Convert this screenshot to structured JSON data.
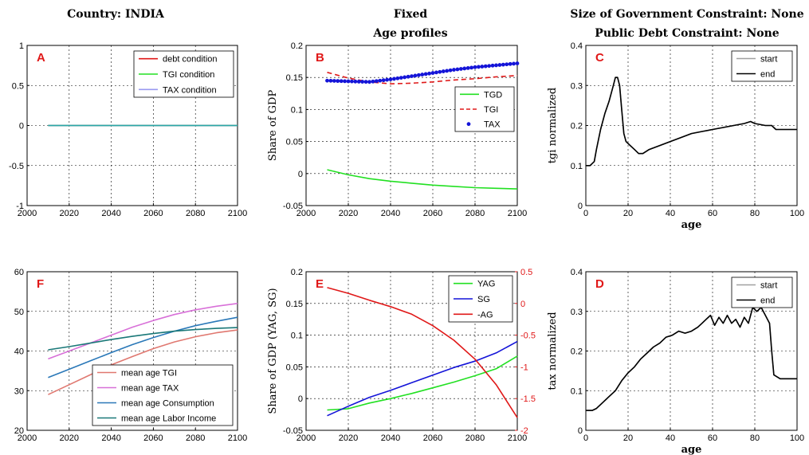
{
  "headers": {
    "country": "Country: INDIA",
    "mode": "Fixed",
    "sub": "Age profiles",
    "constraint1": "Size of Government Constraint: None",
    "constraint2": "Public Debt Constraint: None"
  },
  "colors": {
    "red": "#e01818",
    "green": "#22e022",
    "lavender": "#9a9af0",
    "teal": "#2aa8a8",
    "blue": "#1414d8",
    "steelblue": "#2a78b8",
    "salmon": "#e07870",
    "magenta": "#d870d8",
    "darkteal": "#1a7878",
    "gray": "#a0a0a0",
    "black": "#000000"
  },
  "chart_data": [
    {
      "panel": "A",
      "type": "line",
      "xlabel": "",
      "ylabel": "",
      "xlim": [
        2000,
        2100
      ],
      "ylim": [
        -1,
        1
      ],
      "xticks": [
        2000,
        2020,
        2040,
        2060,
        2080,
        2100
      ],
      "yticks": [
        -1,
        -0.5,
        0,
        0.5,
        1
      ],
      "grid": true,
      "legend_position": "top-right",
      "series": [
        {
          "name": "debt condition",
          "color": "red",
          "style": "solid",
          "x": [
            2010,
            2100
          ],
          "y": [
            0,
            0
          ]
        },
        {
          "name": "TGI condition",
          "color": "green",
          "style": "solid",
          "x": [
            2010,
            2100
          ],
          "y": [
            0,
            0
          ]
        },
        {
          "name": "TAX condition",
          "color": "lavender",
          "style": "solid",
          "x": [
            2010,
            2100
          ],
          "y": [
            0,
            0
          ]
        },
        {
          "color": "teal",
          "style": "solid",
          "x": [
            2010,
            2100
          ],
          "y": [
            0,
            0
          ]
        }
      ]
    },
    {
      "panel": "B",
      "type": "line",
      "xlabel": "",
      "ylabel": "Share of GDP",
      "xlim": [
        2000,
        2100
      ],
      "ylim": [
        -0.05,
        0.2
      ],
      "xticks": [
        2000,
        2020,
        2040,
        2060,
        2080,
        2100
      ],
      "yticks": [
        -0.05,
        0,
        0.05,
        0.1,
        0.15,
        0.2
      ],
      "grid": true,
      "legend_position": "right-middle",
      "series": [
        {
          "name": "TGD",
          "color": "green",
          "style": "solid",
          "x": [
            2010,
            2020,
            2030,
            2040,
            2050,
            2060,
            2070,
            2080,
            2090,
            2100
          ],
          "y": [
            0.006,
            -0.002,
            -0.008,
            -0.012,
            -0.015,
            -0.018,
            -0.02,
            -0.022,
            -0.023,
            -0.024
          ]
        },
        {
          "name": "TGI",
          "color": "red",
          "style": "dashed",
          "x": [
            2010,
            2020,
            2030,
            2040,
            2050,
            2060,
            2070,
            2080,
            2090,
            2100
          ],
          "y": [
            0.158,
            0.149,
            0.143,
            0.14,
            0.141,
            0.143,
            0.146,
            0.148,
            0.151,
            0.153
          ]
        },
        {
          "name": "TAX",
          "color": "blue",
          "style": "markers",
          "x": [
            2010,
            2020,
            2030,
            2040,
            2050,
            2060,
            2070,
            2080,
            2090,
            2100
          ],
          "y": [
            0.145,
            0.144,
            0.143,
            0.147,
            0.152,
            0.157,
            0.162,
            0.166,
            0.169,
            0.172
          ]
        }
      ]
    },
    {
      "panel": "C",
      "type": "line",
      "xlabel": "age",
      "ylabel": "tgi normalized",
      "xlim": [
        0,
        100
      ],
      "ylim": [
        0,
        0.4
      ],
      "xticks": [
        0,
        20,
        40,
        60,
        80,
        100
      ],
      "yticks": [
        0,
        0.1,
        0.2,
        0.3,
        0.4
      ],
      "grid": true,
      "legend_position": "top-right",
      "series": [
        {
          "name": "start",
          "color": "gray",
          "style": "solid",
          "x": [
            0,
            2,
            4,
            5,
            7,
            9,
            11,
            13,
            14,
            15,
            16,
            17,
            18,
            19,
            21,
            23,
            25,
            27,
            30,
            35,
            40,
            45,
            50,
            55,
            60,
            65,
            70,
            75,
            78,
            80,
            85,
            88,
            90,
            100
          ],
          "y": [
            0.1,
            0.1,
            0.11,
            0.14,
            0.19,
            0.23,
            0.26,
            0.3,
            0.32,
            0.32,
            0.3,
            0.24,
            0.18,
            0.16,
            0.15,
            0.14,
            0.13,
            0.13,
            0.14,
            0.15,
            0.16,
            0.17,
            0.18,
            0.185,
            0.19,
            0.195,
            0.2,
            0.205,
            0.21,
            0.205,
            0.2,
            0.2,
            0.19,
            0.19
          ]
        },
        {
          "name": "end",
          "color": "black",
          "style": "solid",
          "x": [
            0,
            2,
            4,
            5,
            7,
            9,
            11,
            13,
            14,
            15,
            16,
            17,
            18,
            19,
            21,
            23,
            25,
            27,
            30,
            35,
            40,
            45,
            50,
            55,
            60,
            65,
            70,
            75,
            78,
            80,
            85,
            88,
            90,
            100
          ],
          "y": [
            0.1,
            0.1,
            0.11,
            0.14,
            0.19,
            0.23,
            0.26,
            0.3,
            0.32,
            0.32,
            0.3,
            0.24,
            0.18,
            0.16,
            0.15,
            0.14,
            0.13,
            0.13,
            0.14,
            0.15,
            0.16,
            0.17,
            0.18,
            0.185,
            0.19,
            0.195,
            0.2,
            0.205,
            0.21,
            0.205,
            0.2,
            0.2,
            0.19,
            0.19
          ]
        }
      ]
    },
    {
      "panel": "F",
      "type": "line",
      "xlabel": "",
      "ylabel": "",
      "xlim": [
        2000,
        2100
      ],
      "ylim": [
        20,
        60
      ],
      "xticks": [
        2000,
        2020,
        2040,
        2060,
        2080,
        2100
      ],
      "yticks": [
        20,
        30,
        40,
        50,
        60
      ],
      "grid": true,
      "legend_position": "bottom-right",
      "series": [
        {
          "name": "mean age TGI",
          "color": "salmon",
          "style": "solid",
          "x": [
            2010,
            2020,
            2030,
            2040,
            2050,
            2060,
            2070,
            2080,
            2090,
            2100
          ],
          "y": [
            29.0,
            31.5,
            34.0,
            36.5,
            38.6,
            40.6,
            42.3,
            43.6,
            44.6,
            45.3
          ]
        },
        {
          "name": "mean age TAX",
          "color": "magenta",
          "style": "solid",
          "x": [
            2010,
            2020,
            2030,
            2040,
            2050,
            2060,
            2070,
            2080,
            2090,
            2100
          ],
          "y": [
            38.0,
            40.0,
            42.0,
            44.0,
            46.0,
            47.7,
            49.2,
            50.4,
            51.3,
            52.0
          ]
        },
        {
          "name": "mean age Consumption",
          "color": "steelblue",
          "style": "solid",
          "x": [
            2010,
            2020,
            2030,
            2040,
            2050,
            2060,
            2070,
            2080,
            2090,
            2100
          ],
          "y": [
            33.3,
            35.4,
            37.5,
            39.6,
            41.6,
            43.4,
            45.0,
            46.4,
            47.5,
            48.5
          ]
        },
        {
          "name": "mean age Labor Income",
          "color": "darkteal",
          "style": "solid",
          "x": [
            2010,
            2020,
            2030,
            2040,
            2050,
            2060,
            2070,
            2080,
            2090,
            2100
          ],
          "y": [
            40.3,
            41.1,
            42.0,
            42.9,
            43.7,
            44.4,
            45.0,
            45.4,
            45.7,
            45.9
          ]
        }
      ]
    },
    {
      "panel": "E",
      "type": "line",
      "xlabel": "",
      "ylabel": "Share of GDP (YAG, SG)",
      "xlim": [
        2000,
        2100
      ],
      "ylim": [
        -0.05,
        0.2
      ],
      "xticks": [
        2000,
        2020,
        2040,
        2060,
        2080,
        2100
      ],
      "yticks": [
        -0.05,
        0,
        0.05,
        0.1,
        0.15,
        0.2
      ],
      "y2lim": [
        -2,
        0.5
      ],
      "y2ticks": [
        -2,
        -1.5,
        -1,
        -0.5,
        0,
        0.5
      ],
      "grid": true,
      "legend_position": "top-right",
      "series": [
        {
          "name": "YAG",
          "color": "green",
          "style": "solid",
          "axis": "left",
          "x": [
            2010,
            2020,
            2030,
            2040,
            2050,
            2060,
            2070,
            2080,
            2090,
            2100
          ],
          "y": [
            -0.018,
            -0.016,
            -0.007,
            0.0,
            0.008,
            0.017,
            0.026,
            0.036,
            0.047,
            0.067
          ]
        },
        {
          "name": "SG",
          "color": "blue",
          "style": "solid",
          "axis": "left",
          "x": [
            2010,
            2020,
            2030,
            2040,
            2050,
            2060,
            2070,
            2080,
            2090,
            2100
          ],
          "y": [
            -0.027,
            -0.012,
            0.002,
            0.013,
            0.025,
            0.037,
            0.049,
            0.059,
            0.072,
            0.09
          ]
        },
        {
          "name": "-AG",
          "color": "red",
          "style": "solid",
          "axis": "right",
          "x": [
            2010,
            2020,
            2030,
            2040,
            2050,
            2060,
            2070,
            2080,
            2090,
            2100
          ],
          "y": [
            0.25,
            0.16,
            0.05,
            -0.05,
            -0.17,
            -0.35,
            -0.58,
            -0.88,
            -1.28,
            -1.8
          ]
        }
      ]
    },
    {
      "panel": "D",
      "type": "line",
      "xlabel": "age",
      "ylabel": "tax normalized",
      "xlim": [
        0,
        100
      ],
      "ylim": [
        0,
        0.4
      ],
      "xticks": [
        0,
        20,
        40,
        60,
        80,
        100
      ],
      "yticks": [
        0,
        0.1,
        0.2,
        0.3,
        0.4
      ],
      "grid": true,
      "legend_position": "top-right",
      "series": [
        {
          "name": "start",
          "color": "gray",
          "style": "solid",
          "x": [
            0,
            3,
            5,
            8,
            11,
            14,
            17,
            20,
            23,
            26,
            29,
            32,
            35,
            38,
            41,
            44,
            47,
            50,
            53,
            55,
            57,
            59,
            61,
            63,
            65,
            67,
            69,
            71,
            73,
            75,
            77,
            79,
            81,
            83,
            85,
            87,
            88,
            89,
            92,
            95,
            100
          ],
          "y": [
            0.05,
            0.05,
            0.055,
            0.07,
            0.085,
            0.1,
            0.125,
            0.145,
            0.16,
            0.18,
            0.195,
            0.21,
            0.22,
            0.235,
            0.24,
            0.25,
            0.245,
            0.25,
            0.26,
            0.27,
            0.28,
            0.29,
            0.265,
            0.285,
            0.27,
            0.29,
            0.27,
            0.28,
            0.26,
            0.285,
            0.27,
            0.31,
            0.3,
            0.31,
            0.29,
            0.27,
            0.2,
            0.14,
            0.13,
            0.13,
            0.13
          ]
        },
        {
          "name": "end",
          "color": "black",
          "style": "solid",
          "x": [
            0,
            3,
            5,
            8,
            11,
            14,
            17,
            20,
            23,
            26,
            29,
            32,
            35,
            38,
            41,
            44,
            47,
            50,
            53,
            55,
            57,
            59,
            61,
            63,
            65,
            67,
            69,
            71,
            73,
            75,
            77,
            79,
            81,
            83,
            85,
            87,
            88,
            89,
            92,
            95,
            100
          ],
          "y": [
            0.05,
            0.05,
            0.055,
            0.07,
            0.085,
            0.1,
            0.125,
            0.145,
            0.16,
            0.18,
            0.195,
            0.21,
            0.22,
            0.235,
            0.24,
            0.25,
            0.245,
            0.25,
            0.26,
            0.27,
            0.28,
            0.29,
            0.265,
            0.285,
            0.27,
            0.29,
            0.27,
            0.28,
            0.26,
            0.285,
            0.27,
            0.31,
            0.3,
            0.31,
            0.29,
            0.27,
            0.2,
            0.14,
            0.13,
            0.13,
            0.13
          ]
        }
      ]
    }
  ]
}
